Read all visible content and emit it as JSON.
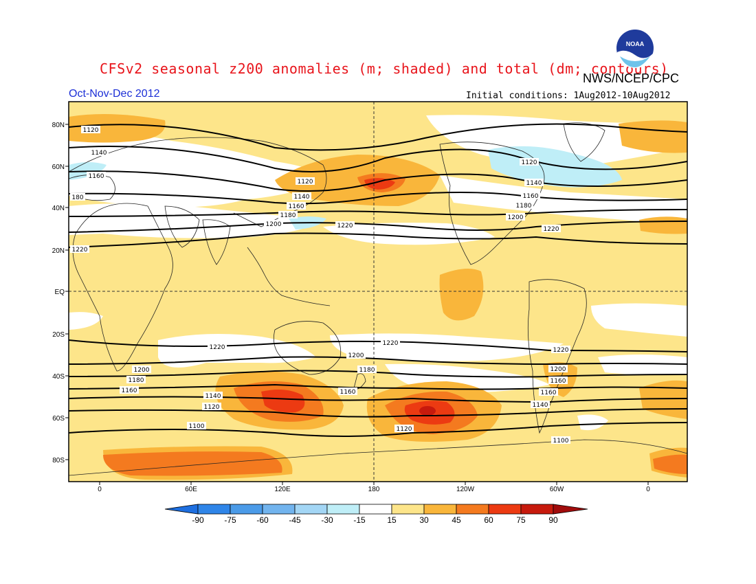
{
  "header": {
    "title": "CFSv2 seasonal z200 anomalies (m; shaded) and total (dm; contours)",
    "agency": "NWS/NCEP/CPC",
    "season": "Oct-Nov-Dec 2012",
    "initial_conditions": "Initial conditions: 1Aug2012-10Aug2012",
    "logo_text": "NOAA"
  },
  "axes": {
    "lat_labels": [
      "80N",
      "60N",
      "40N",
      "20N",
      "EQ",
      "20S",
      "40S",
      "60S",
      "80S"
    ],
    "lon_labels": [
      "0",
      "60E",
      "120E",
      "180",
      "120W",
      "60W",
      "0"
    ]
  },
  "contours": [
    {
      "label": "1220",
      "hemisphere": "N"
    },
    {
      "label": "1200",
      "hemisphere": "N"
    },
    {
      "label": "1180",
      "hemisphere": "N"
    },
    {
      "label": "1160",
      "hemisphere": "N"
    },
    {
      "label": "1140",
      "hemisphere": "N"
    },
    {
      "label": "1120",
      "hemisphere": "N"
    },
    {
      "label": "1220",
      "hemisphere": "S"
    },
    {
      "label": "1200",
      "hemisphere": "S"
    },
    {
      "label": "1180",
      "hemisphere": "S"
    },
    {
      "label": "1160",
      "hemisphere": "S"
    },
    {
      "label": "1140",
      "hemisphere": "S"
    },
    {
      "label": "1120",
      "hemisphere": "S"
    },
    {
      "label": "1100",
      "hemisphere": "S"
    }
  ],
  "colorbar": {
    "ticks": [
      "-90",
      "-75",
      "-60",
      "-45",
      "-30",
      "-15",
      "15",
      "30",
      "45",
      "60",
      "75",
      "90"
    ],
    "colors": [
      "#1e6fe0",
      "#2f85e8",
      "#4b9be8",
      "#72b4ee",
      "#a3d6f5",
      "#bfeef7",
      "#ffffff",
      "#fde58a",
      "#f9b63b",
      "#f47a1f",
      "#ec3a12",
      "#c71a0d",
      "#a10c0c"
    ]
  },
  "shading_colors": {
    "light_yellow": "#fde58a",
    "orange": "#f9b63b",
    "dark_orange": "#f47a1f",
    "red": "#ec3a12",
    "deep_red": "#c71a0d",
    "light_blue": "#bfeef7"
  }
}
